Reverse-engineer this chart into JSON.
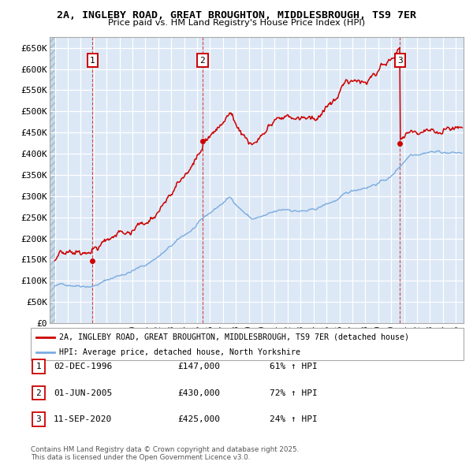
{
  "title_line1": "2A, INGLEBY ROAD, GREAT BROUGHTON, MIDDLESBROUGH, TS9 7ER",
  "title_line2": "Price paid vs. HM Land Registry's House Price Index (HPI)",
  "ylim": [
    0,
    675000
  ],
  "yticks": [
    0,
    50000,
    100000,
    150000,
    200000,
    250000,
    300000,
    350000,
    400000,
    450000,
    500000,
    550000,
    600000,
    650000
  ],
  "ytick_labels": [
    "£0",
    "£50K",
    "£100K",
    "£150K",
    "£200K",
    "£250K",
    "£300K",
    "£350K",
    "£400K",
    "£450K",
    "£500K",
    "£550K",
    "£600K",
    "£650K"
  ],
  "xlim_start": 1993.6,
  "xlim_end": 2025.6,
  "sale_dates": [
    1996.92,
    2005.42,
    2020.69
  ],
  "sale_prices": [
    147000,
    430000,
    425000
  ],
  "sale_labels": [
    "1",
    "2",
    "3"
  ],
  "property_line_color": "#cc0000",
  "hpi_line_color": "#7aabe0",
  "bg_color": "#dce8f5",
  "legend_label_property": "2A, INGLEBY ROAD, GREAT BROUGHTON, MIDDLESBROUGH, TS9 7ER (detached house)",
  "legend_label_hpi": "HPI: Average price, detached house, North Yorkshire",
  "table_entries": [
    {
      "num": "1",
      "date": "02-DEC-1996",
      "price": "£147,000",
      "change": "61% ↑ HPI"
    },
    {
      "num": "2",
      "date": "01-JUN-2005",
      "price": "£430,000",
      "change": "72% ↑ HPI"
    },
    {
      "num": "3",
      "date": "11-SEP-2020",
      "price": "£425,000",
      "change": "24% ↑ HPI"
    }
  ],
  "footnote": "Contains HM Land Registry data © Crown copyright and database right 2025.\nThis data is licensed under the Open Government Licence v3.0."
}
